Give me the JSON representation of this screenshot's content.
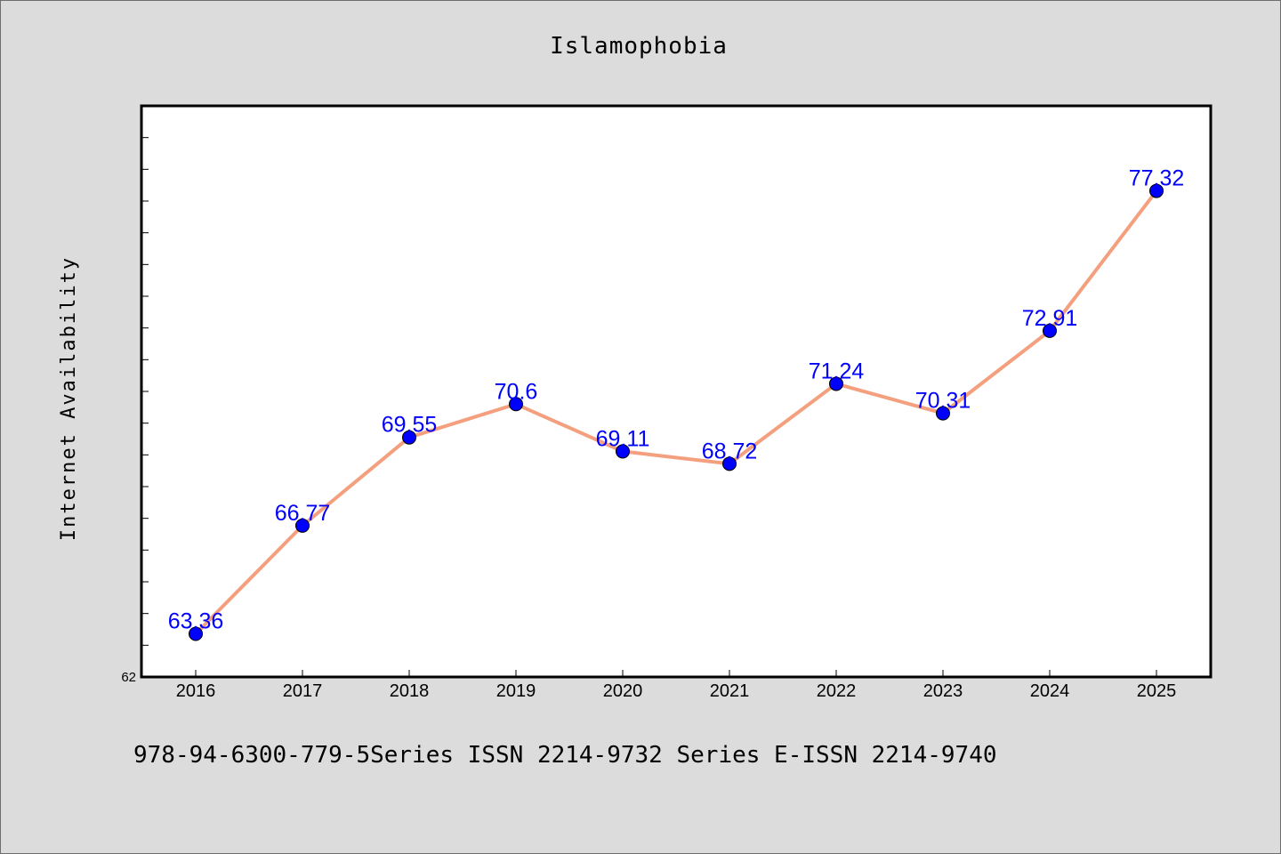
{
  "chart_data": {
    "type": "line",
    "title": "Islamophobia",
    "xlabel": "",
    "ylabel": "Internet Availability",
    "categories": [
      "2016",
      "2017",
      "2018",
      "2019",
      "2020",
      "2021",
      "2022",
      "2023",
      "2024",
      "2025"
    ],
    "series": [
      {
        "values": [
          63.36,
          66.77,
          69.55,
          70.6,
          69.11,
          68.72,
          71.24,
          70.31,
          72.91,
          77.32
        ],
        "data_labels": [
          "63.36",
          "66.77",
          "69.55",
          "70.6",
          "69.11",
          "68.72",
          "71.24",
          "70.31",
          "72.91",
          "77.32"
        ],
        "line_color": "#f4a07e",
        "marker_color": "#0000ff"
      }
    ],
    "ylim": [
      62,
      80
    ],
    "ytick_labels": [
      "62"
    ],
    "grid": false,
    "legend": "none",
    "label_color": "#0000ff",
    "background": "#dcdcdc",
    "plot_background": "#ffffff"
  },
  "footer": {
    "text": "978-94-6300-779-5Series ISSN 2214-9732 Series E-ISSN 2214-9740"
  }
}
